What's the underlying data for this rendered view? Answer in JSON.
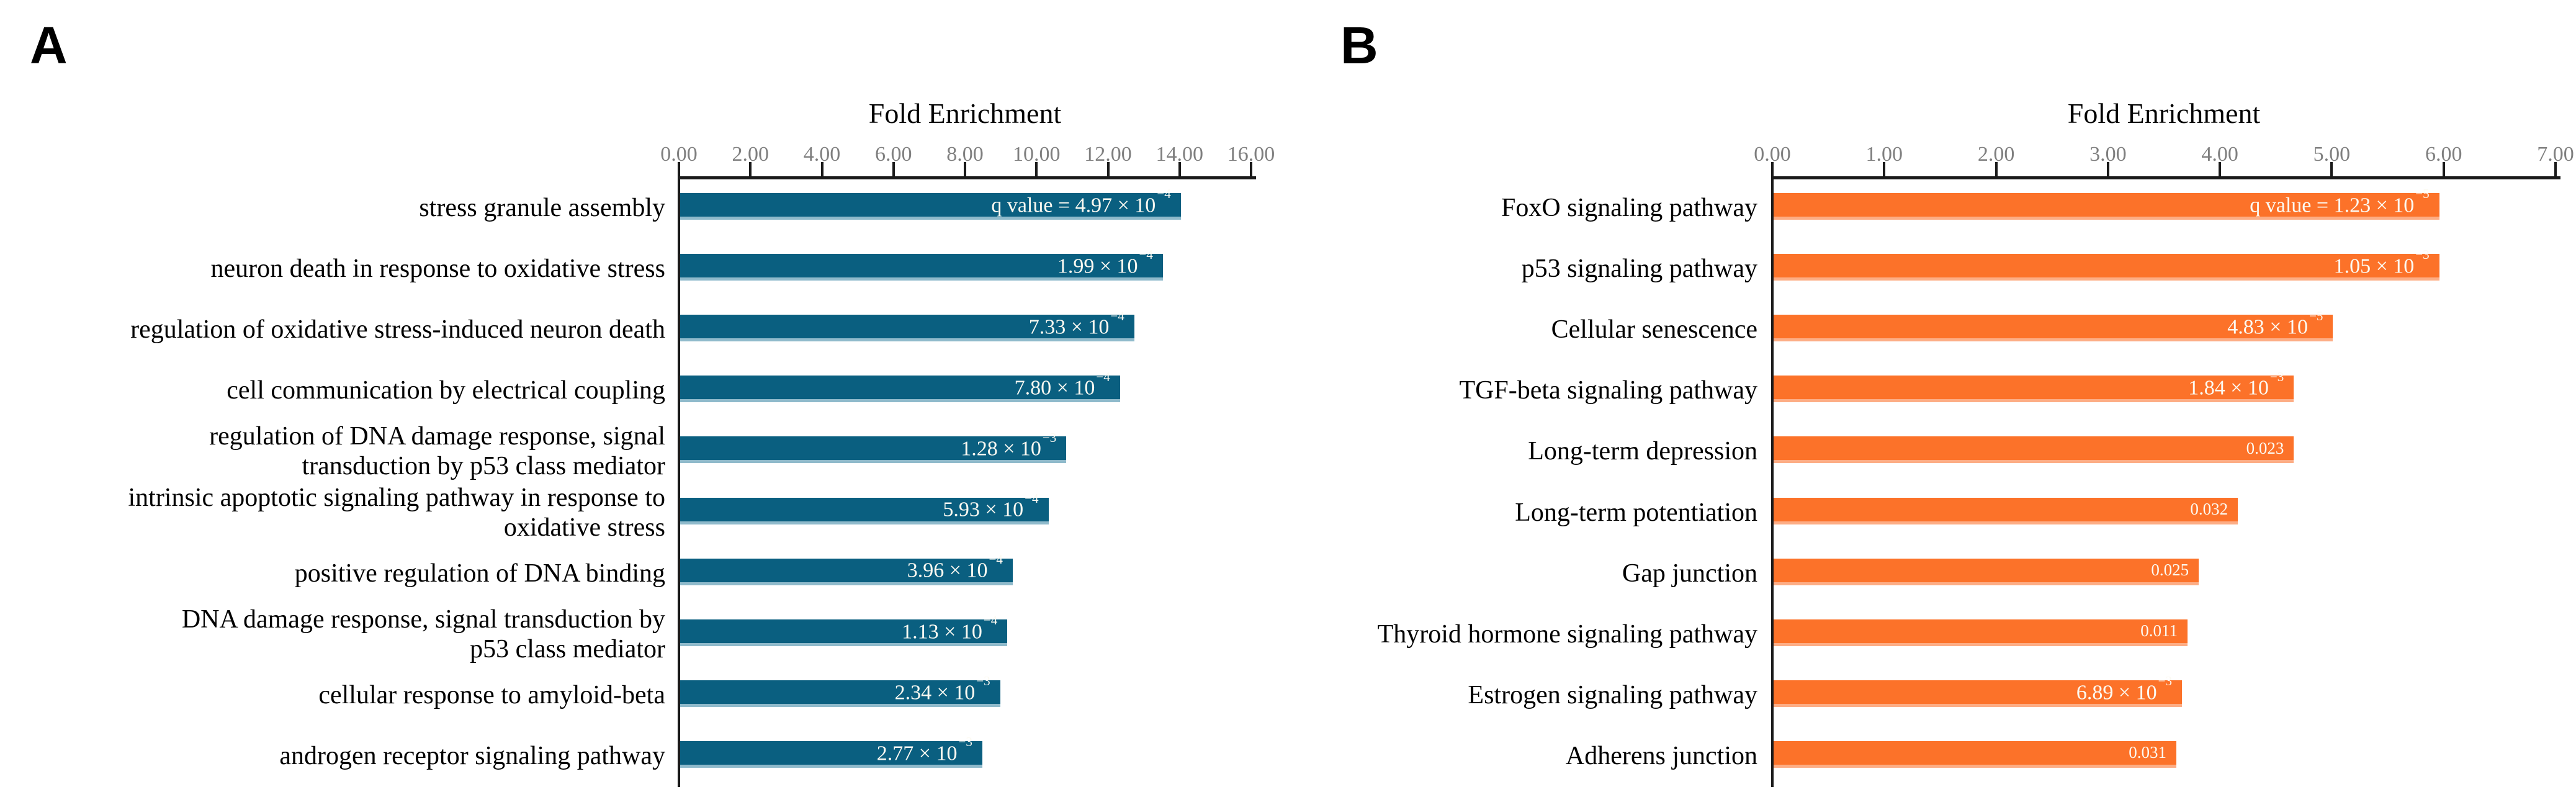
{
  "figure": {
    "background": "#FFFFFF"
  },
  "chart_data": [
    {
      "type": "bar",
      "orientation": "horizontal",
      "panel_label": "A",
      "title": "Fold Enrichment",
      "xlabel": "Fold Enrichment",
      "ylabel": "",
      "xlim": [
        0,
        16
      ],
      "xtick_step": 2.0,
      "xtick_labels": [
        "0.00",
        "2.00",
        "4.00",
        "6.00",
        "8.00",
        "10.00",
        "12.00",
        "14.00",
        "16.00"
      ],
      "grid": false,
      "bar_color": "#0A5F80",
      "bar_edge_color": "#8FBACB",
      "value_label_color": "#FCFAF2",
      "categories": [
        "stress granule assembly",
        "neuron death in response to oxidative stress",
        "regulation of oxidative stress-induced neuron death",
        "cell communication by electrical coupling",
        "regulation of DNA damage response, signal\ntransduction by p53 class mediator",
        "intrinsic apoptotic signaling pathway in response to\noxidative stress",
        "positive regulation of DNA binding",
        "DNA damage response, signal transduction by\np53 class mediator",
        "cellular response to amyloid-beta",
        "androgen receptor signaling pathway"
      ],
      "values": [
        14.0,
        13.5,
        12.7,
        12.3,
        10.8,
        10.3,
        9.3,
        9.15,
        8.95,
        8.45
      ],
      "q_value_labels": [
        "q value = 4.97 × 10^−4",
        "1.99 × 10^−4",
        "7.33 × 10^−4",
        "7.80 × 10^−4",
        "1.28 × 10^−3",
        "5.93 × 10^−4",
        "3.96 × 10^−4",
        "1.13 × 10^−4",
        "2.34 × 10^−3",
        "2.77 × 10^−3"
      ]
    },
    {
      "type": "bar",
      "orientation": "horizontal",
      "panel_label": "B",
      "title": "Fold Enrichment",
      "xlabel": "Fold Enrichment",
      "ylabel": "",
      "xlim": [
        0,
        7
      ],
      "xtick_step": 1.0,
      "xtick_labels": [
        "0.00",
        "1.00",
        "2.00",
        "3.00",
        "4.00",
        "5.00",
        "6.00",
        "7.00"
      ],
      "grid": false,
      "bar_color": "#FC7229",
      "bar_edge_color": "#FDAD85",
      "value_label_color": "#FCFAF2",
      "categories": [
        "FoxO signaling pathway",
        "p53 signaling pathway",
        "Cellular senescence",
        "TGF-beta signaling pathway",
        "Long-term depression",
        "Long-term potentiation",
        "Gap junction",
        "Thyroid hormone signaling pathway",
        "Estrogen signaling pathway",
        "Adherens junction"
      ],
      "values": [
        5.95,
        5.95,
        5.0,
        4.65,
        4.65,
        4.15,
        3.8,
        3.7,
        3.65,
        3.6
      ],
      "q_value_labels": [
        "q value = 1.23 × 10^−5",
        "1.05 × 10^−3",
        "4.83 × 10^−5",
        "1.84 × 10^−3",
        "0.023",
        "0.032",
        "0.025",
        "0.011",
        "6.89 × 10^−3",
        "0.031"
      ]
    }
  ]
}
